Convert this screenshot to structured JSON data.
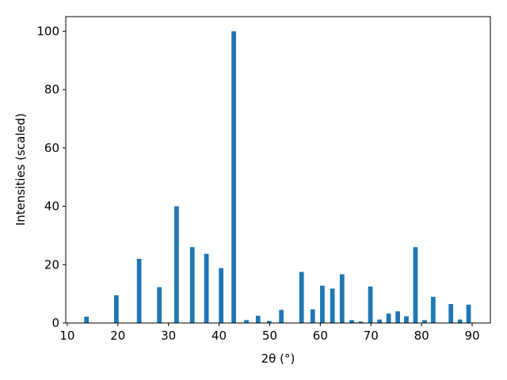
{
  "chart_data": {
    "type": "bar",
    "x_label": "2θ (°)",
    "y_label": "Intensities (scaled)",
    "x": [
      13.8,
      19.7,
      24.2,
      28.2,
      31.6,
      34.7,
      37.5,
      40.4,
      42.9,
      45.4,
      47.7,
      49.9,
      52.3,
      56.3,
      58.5,
      60.4,
      62.4,
      64.3,
      66.2,
      68.0,
      69.9,
      71.7,
      73.5,
      75.3,
      77.0,
      78.8,
      80.6,
      82.3,
      85.8,
      87.6,
      89.3
    ],
    "values": [
      2.2,
      9.5,
      22,
      12.3,
      40,
      26,
      23.7,
      18.8,
      100,
      1,
      2.5,
      0.7,
      4.5,
      17.5,
      4.7,
      12.8,
      11.8,
      16.7,
      1,
      0.5,
      12.5,
      1.2,
      3.2,
      4,
      2.3,
      26,
      1,
      9,
      6.5,
      1.2,
      6.3
    ],
    "color": "#1f77b4",
    "xlim": [
      9.7,
      93.6
    ],
    "xticks": [
      10,
      20,
      30,
      40,
      50,
      60,
      70,
      80,
      90
    ],
    "ylim": [
      0,
      105
    ],
    "yticks": [
      0,
      20,
      40,
      60,
      80,
      100
    ],
    "grid": false
  }
}
